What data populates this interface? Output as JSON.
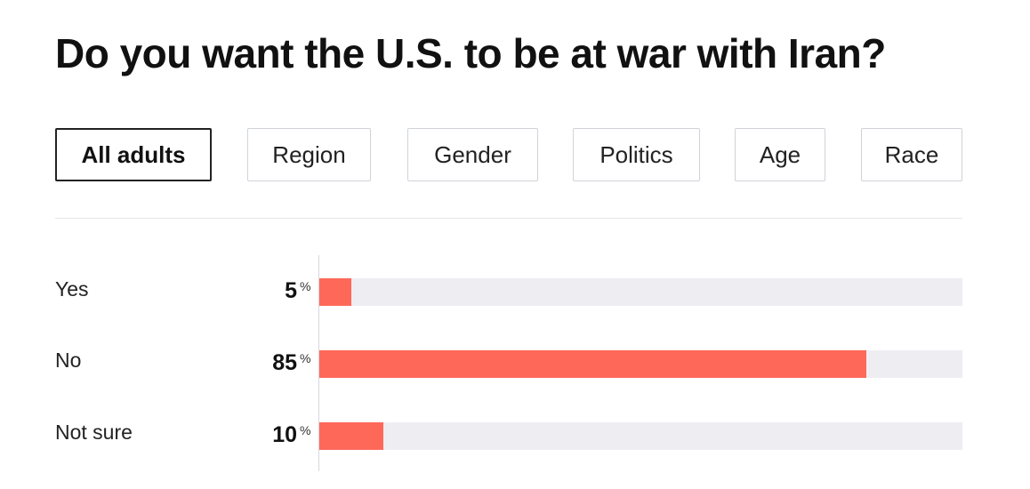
{
  "title": "Do you want the U.S. to be at war with Iran?",
  "tabs": [
    {
      "label": "All adults",
      "active": true
    },
    {
      "label": "Region",
      "active": false
    },
    {
      "label": "Gender",
      "active": false
    },
    {
      "label": "Politics",
      "active": false
    },
    {
      "label": "Age",
      "active": false
    },
    {
      "label": "Race",
      "active": false
    }
  ],
  "colors": {
    "bar": "#fe6859",
    "track": "#eeeef2",
    "active_border": "#222222",
    "inactive_border": "#cfd3d8"
  },
  "chart_data": {
    "type": "bar",
    "orientation": "horizontal",
    "categories": [
      "Yes",
      "No",
      "Not sure"
    ],
    "values": [
      5,
      85,
      10
    ],
    "value_labels": [
      "5",
      "85",
      "10"
    ],
    "unit": "%",
    "xlim": [
      0,
      100
    ],
    "grid": false
  }
}
